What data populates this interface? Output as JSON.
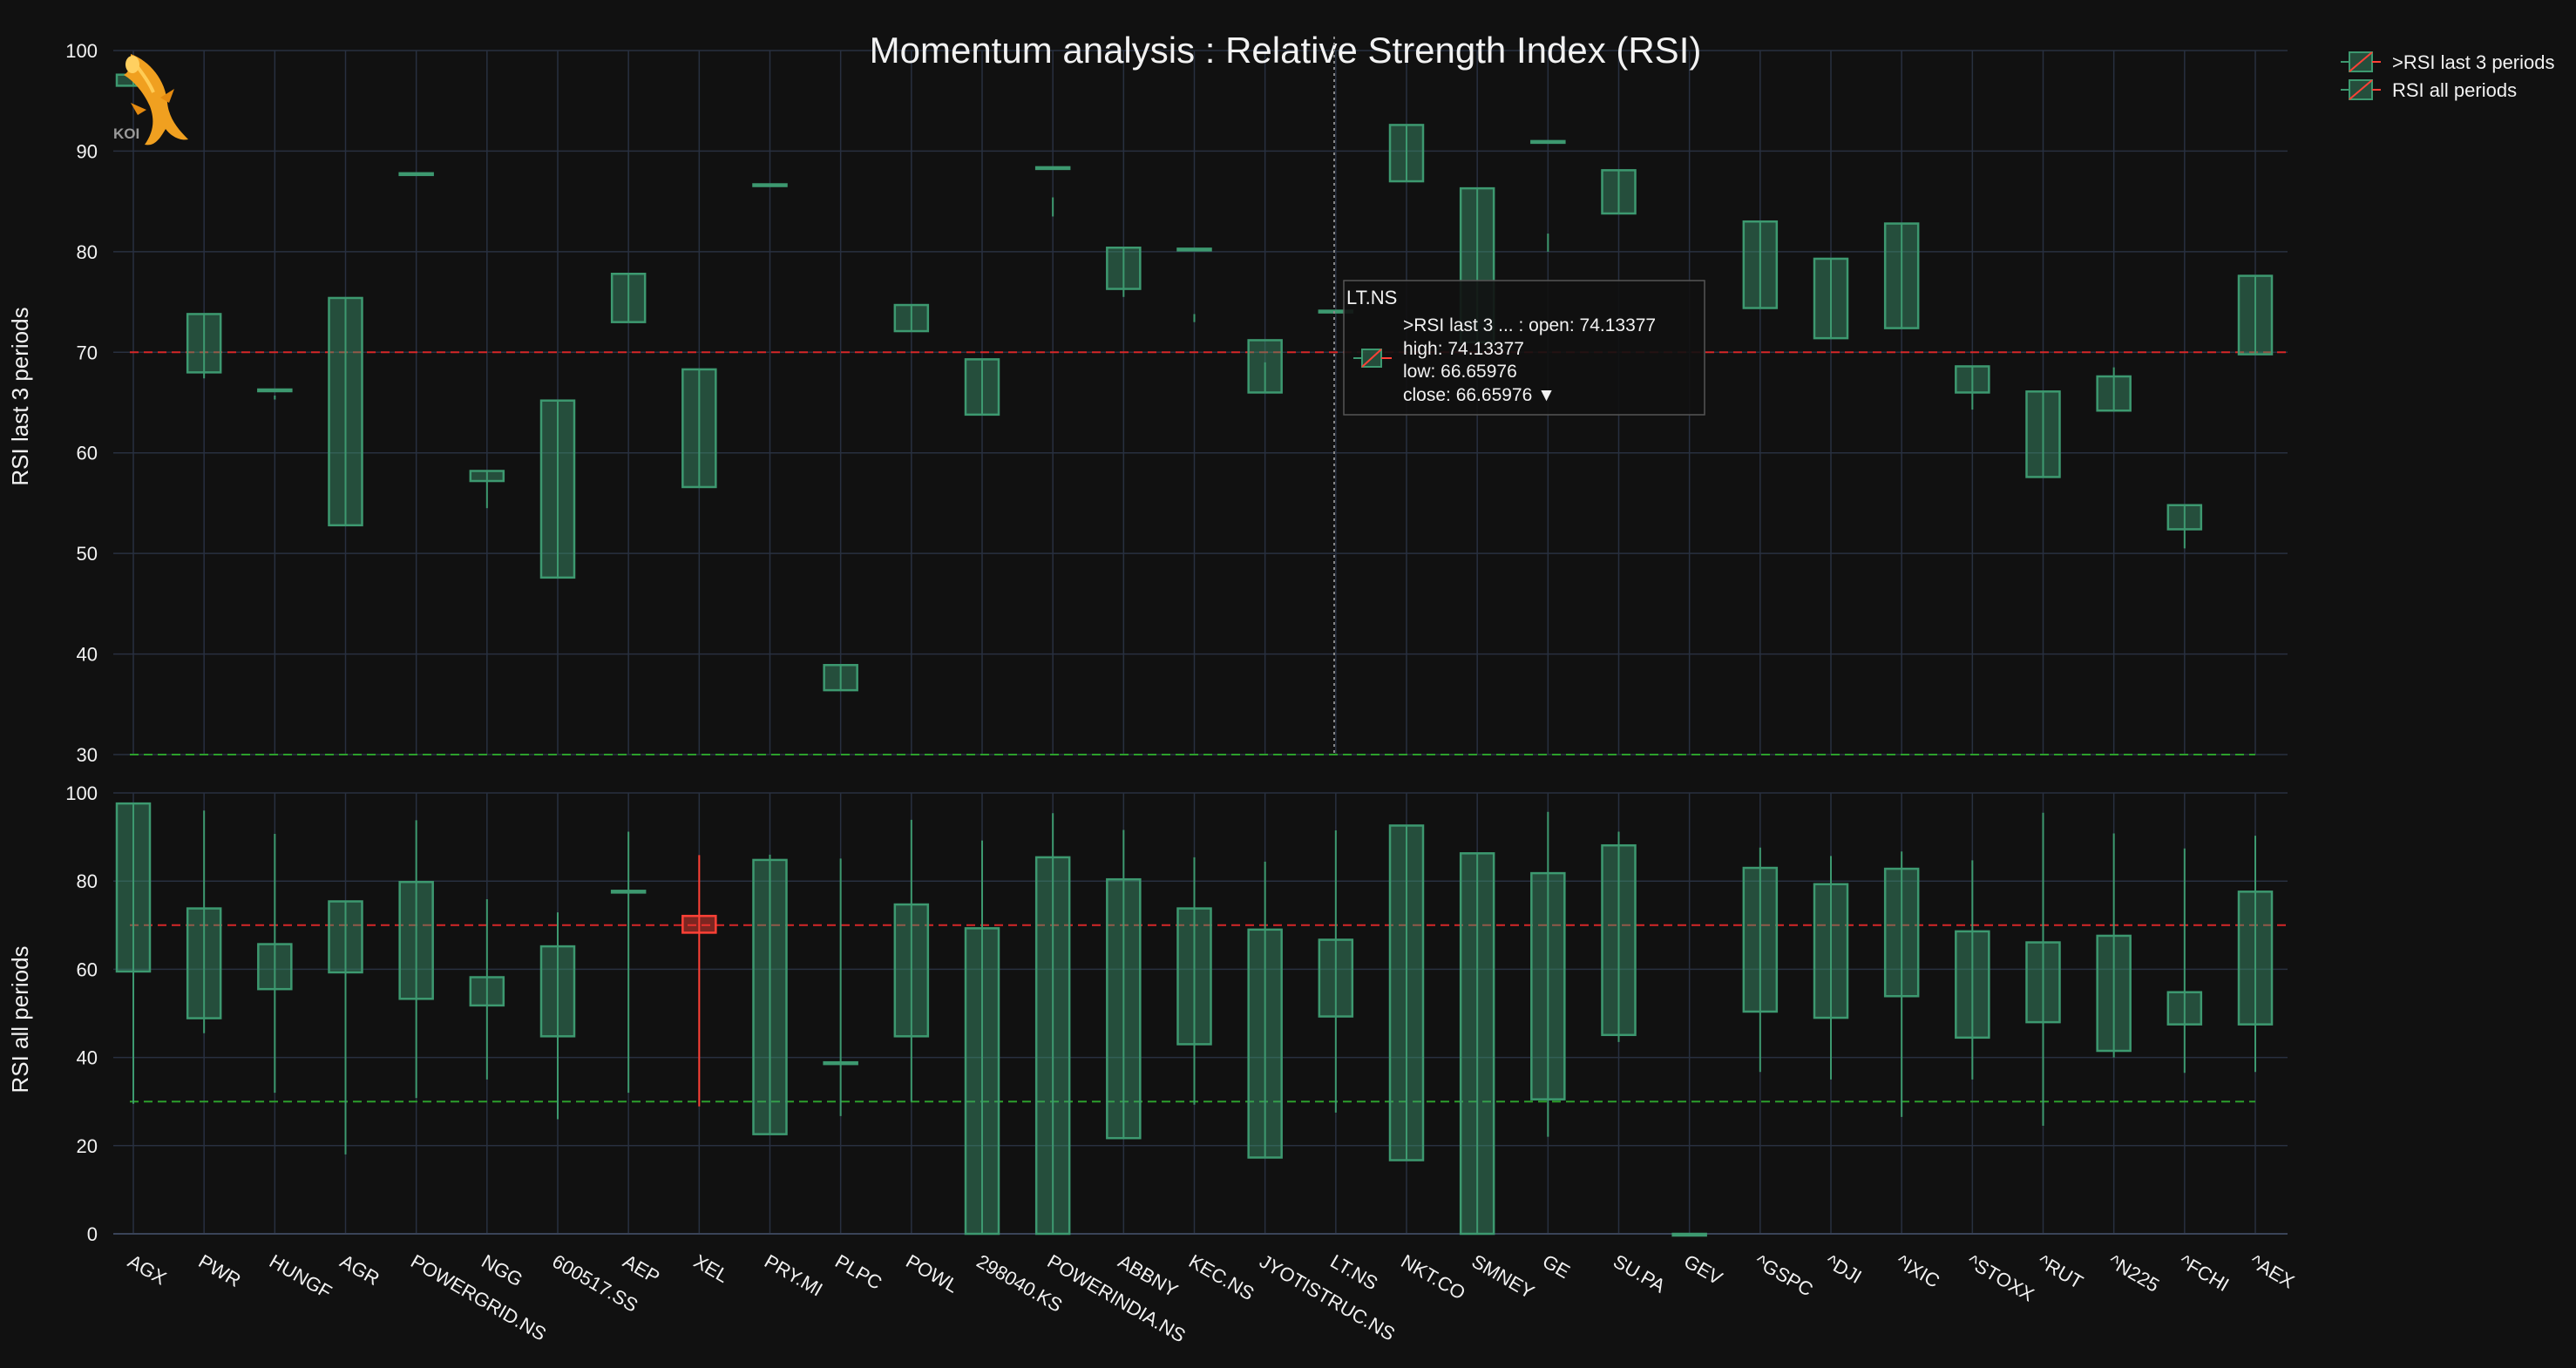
{
  "chart_data": {
    "type": "candlestick",
    "title": "Momentum analysis : Relative Strength Index (RSI)",
    "categories": [
      "AGX",
      "PWR",
      "HUNGF",
      "AGR",
      "POWERGRID.NS",
      "NGG",
      "600517.SS",
      "AEP",
      "XEL",
      "PRY.MI",
      "PLPC",
      "POWL",
      "298040.KS",
      "POWERINDIA.NS",
      "ABBNY",
      "KEC.NS",
      "JYOTISTRUC.NS",
      "LT.NS",
      "NKT.CO",
      "SMNEY",
      "GE",
      "SU.PA",
      "GEV",
      "^GSPC",
      "^DJI",
      "^IXIC",
      "^STOXX",
      "^RUT",
      "^N225",
      "^FCHI",
      "^AEX"
    ],
    "colors": {
      "increasing": "#3d9970",
      "decreasing": "#ff4136",
      "increasing_fill": "rgba(61,153,112,0.45)",
      "decreasing_fill": "rgba(255,65,54,0.45)"
    },
    "panels": [
      {
        "name": ">RSI last 3 periods",
        "ylabel": "RSI last 3 periods",
        "ylim": [
          30,
          100
        ],
        "yticks": [
          30,
          40,
          50,
          60,
          70,
          80,
          90,
          100
        ],
        "thresholds": [
          {
            "value": 70,
            "color": "#d62728"
          },
          {
            "value": 30,
            "color": "#2ca02c"
          }
        ],
        "ohlc": [
          [
            96.5,
            97.6,
            96.5,
            97.6
          ],
          [
            68.0,
            73.8,
            67.4,
            73.8
          ],
          [
            66.3,
            66.3,
            65.3,
            65.7
          ],
          [
            52.8,
            75.4,
            52.8,
            75.4
          ],
          [
            87.8,
            87.8,
            79.8,
            79.8
          ],
          [
            57.2,
            58.2,
            54.5,
            58.2
          ],
          [
            47.6,
            65.2,
            47.6,
            65.2
          ],
          [
            73.0,
            77.8,
            73.0,
            77.8
          ],
          [
            56.6,
            68.3,
            56.6,
            68.3
          ],
          [
            86.7,
            86.7,
            84.8,
            84.8
          ],
          [
            36.4,
            38.9,
            36.4,
            38.9
          ],
          [
            72.1,
            74.7,
            72.1,
            74.7
          ],
          [
            63.8,
            69.3,
            63.8,
            69.3
          ],
          [
            88.4,
            88.4,
            83.5,
            85.4
          ],
          [
            76.3,
            80.4,
            75.5,
            80.4
          ],
          [
            80.3,
            80.3,
            73.0,
            73.8
          ],
          [
            66.0,
            71.2,
            66.0,
            69.0
          ],
          [
            74.13377,
            74.13377,
            66.65976,
            66.65976
          ],
          [
            87.0,
            92.6,
            87.0,
            92.6
          ],
          [
            71.0,
            86.3,
            71.0,
            86.3
          ],
          [
            91.0,
            91.0,
            80.0,
            81.8
          ],
          [
            83.8,
            88.1,
            83.8,
            88.1
          ],
          null,
          [
            74.4,
            83.0,
            74.4,
            83.0
          ],
          [
            71.4,
            79.3,
            71.4,
            79.3
          ],
          [
            72.4,
            82.8,
            72.4,
            82.8
          ],
          [
            66.0,
            68.6,
            64.3,
            68.6
          ],
          [
            57.6,
            66.1,
            57.6,
            66.1
          ],
          [
            64.2,
            67.6,
            64.2,
            68.5
          ],
          [
            52.4,
            54.8,
            50.5,
            54.8
          ],
          [
            69.8,
            77.6,
            69.8,
            77.6
          ]
        ]
      },
      {
        "name": "RSI all periods",
        "ylabel": "RSI all periods",
        "ylim": [
          0,
          100
        ],
        "yticks": [
          0,
          20,
          40,
          60,
          80,
          100
        ],
        "thresholds": [
          {
            "value": 70,
            "color": "#d62728"
          },
          {
            "value": 30,
            "color": "#2ca02c"
          }
        ],
        "ohlc": [
          [
            59.5,
            97.6,
            29.5,
            97.6
          ],
          [
            48.9,
            73.8,
            45.5,
            96.0
          ],
          [
            55.5,
            65.7,
            32.0,
            90.7
          ],
          [
            59.3,
            75.4,
            18.0,
            75.4
          ],
          [
            53.3,
            79.8,
            30.8,
            93.8
          ],
          [
            51.8,
            58.2,
            35.0,
            75.9
          ],
          [
            44.8,
            65.2,
            26.0,
            72.9
          ],
          [
            77.4,
            77.8,
            32.0,
            91.2
          ],
          [
            72.1,
            68.3,
            28.9,
            85.9
          ],
          [
            22.6,
            84.8,
            22.6,
            86.0
          ],
          [
            38.9,
            38.9,
            26.7,
            85.1
          ],
          [
            44.8,
            74.7,
            30.0,
            93.9
          ],
          [
            0.0,
            69.3,
            0.0,
            89.2
          ],
          [
            0.0,
            85.4,
            0.0,
            95.4
          ],
          [
            21.7,
            80.4,
            21.7,
            91.6
          ],
          [
            43.0,
            73.8,
            29.3,
            85.4
          ],
          [
            17.3,
            69.0,
            17.3,
            84.4
          ],
          [
            49.3,
            66.7,
            27.5,
            91.5
          ],
          [
            16.7,
            92.6,
            16.7,
            92.6
          ],
          [
            0.0,
            86.3,
            0.0,
            86.3
          ],
          [
            30.5,
            81.8,
            22.0,
            95.7
          ],
          [
            45.1,
            88.1,
            43.5,
            91.2
          ],
          [
            0.0,
            0.0,
            0.0,
            0.0
          ],
          [
            50.4,
            83.0,
            36.7,
            87.6
          ],
          [
            49.0,
            79.3,
            35.0,
            85.7
          ],
          [
            53.9,
            82.8,
            26.5,
            86.7
          ],
          [
            44.5,
            68.6,
            35.0,
            84.7
          ],
          [
            48.0,
            66.1,
            24.5,
            95.5
          ],
          [
            41.5,
            67.6,
            40.0,
            90.8
          ],
          [
            47.5,
            54.8,
            36.5,
            87.4
          ],
          [
            47.5,
            77.6,
            36.7,
            90.3
          ]
        ]
      }
    ],
    "legend": {
      "position": "top-right",
      "items": [
        ">RSI last 3 periods",
        "RSI all periods"
      ]
    },
    "grid": true,
    "hover": {
      "category": "LT.NS",
      "series": ">RSI last 3 ...",
      "lines": [
        ">RSI last 3 ... : open: 74.13377",
        "high: 74.13377",
        "low: 66.65976",
        "close: 66.65976 ▼"
      ]
    },
    "logo_text": "KOI"
  }
}
